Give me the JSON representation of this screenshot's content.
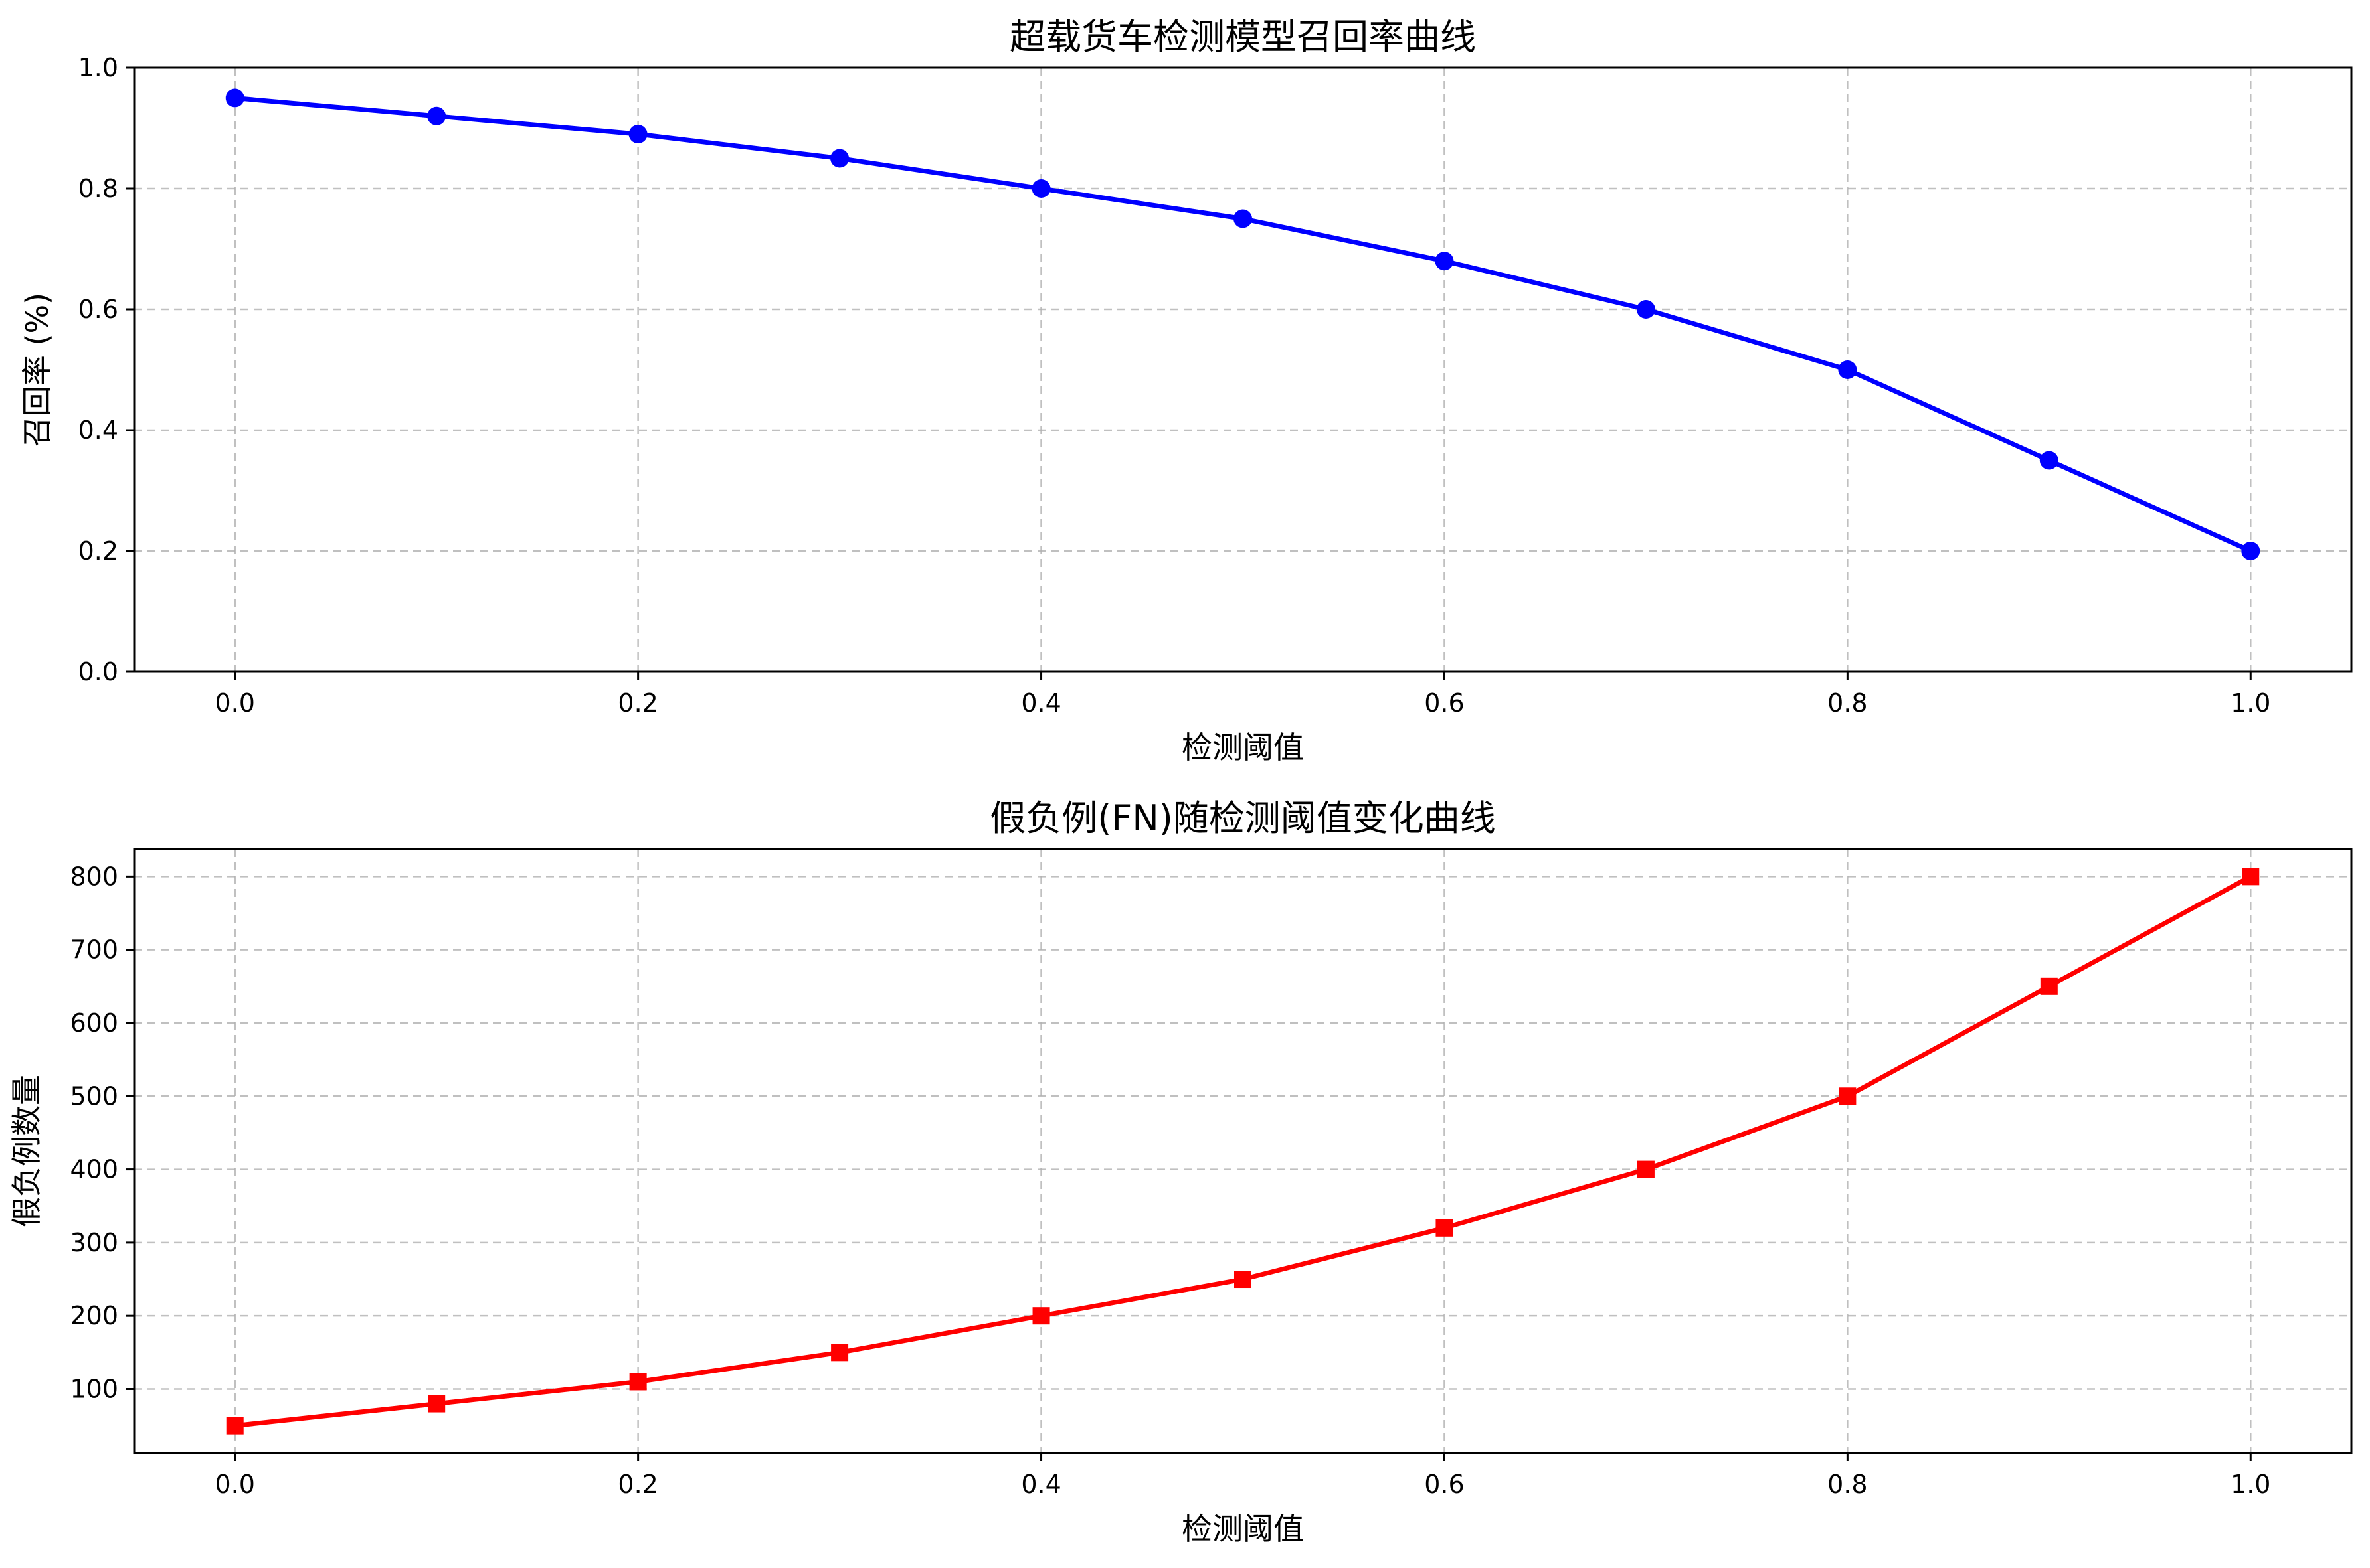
{
  "chart_data": [
    {
      "type": "line",
      "title": "超载货车检测模型召回率曲线",
      "xlabel": "检测阈值",
      "ylabel": "召回率 (%)",
      "x": [
        0.0,
        0.1,
        0.2,
        0.3,
        0.4,
        0.5,
        0.6,
        0.7,
        0.8,
        0.9,
        1.0
      ],
      "series": [
        {
          "values": [
            0.95,
            0.92,
            0.89,
            0.85,
            0.8,
            0.75,
            0.68,
            0.6,
            0.5,
            0.35,
            0.2
          ],
          "color": "#0000ff",
          "marker": "circle"
        }
      ],
      "xlim": [
        -0.05,
        1.05
      ],
      "ylim": [
        0.0,
        1.0
      ],
      "xticks": [
        0.0,
        0.2,
        0.4,
        0.6,
        0.8,
        1.0
      ],
      "xtick_labels": [
        "0.0",
        "0.2",
        "0.4",
        "0.6",
        "0.8",
        "1.0"
      ],
      "yticks": [
        0.0,
        0.2,
        0.4,
        0.6,
        0.8,
        1.0
      ],
      "ytick_labels": [
        "0.0",
        "0.2",
        "0.4",
        "0.6",
        "0.8",
        "1.0"
      ],
      "grid": true
    },
    {
      "type": "line",
      "title": "假负例(FN)随检测阈值变化曲线",
      "xlabel": "检测阈值",
      "ylabel": "假负例数量",
      "x": [
        0.0,
        0.1,
        0.2,
        0.3,
        0.4,
        0.5,
        0.6,
        0.7,
        0.8,
        0.9,
        1.0
      ],
      "series": [
        {
          "values": [
            50,
            80,
            110,
            150,
            200,
            250,
            320,
            400,
            500,
            650,
            800
          ],
          "color": "#ff0000",
          "marker": "square"
        }
      ],
      "xlim": [
        -0.05,
        1.05
      ],
      "ylim": [
        12.5,
        837.5
      ],
      "xticks": [
        0.0,
        0.2,
        0.4,
        0.6,
        0.8,
        1.0
      ],
      "xtick_labels": [
        "0.0",
        "0.2",
        "0.4",
        "0.6",
        "0.8",
        "1.0"
      ],
      "yticks": [
        100,
        200,
        300,
        400,
        500,
        600,
        700,
        800
      ],
      "ytick_labels": [
        "100",
        "200",
        "300",
        "400",
        "500",
        "600",
        "700",
        "800"
      ],
      "grid": true
    }
  ]
}
